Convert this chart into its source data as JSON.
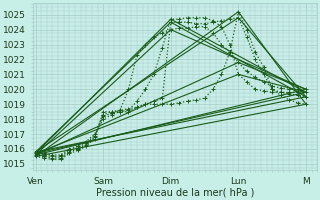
{
  "background_color": "#c8eee8",
  "grid_color": "#a8ccc8",
  "line_color": "#1a5c1a",
  "text_color": "#1a3a1a",
  "ylabel_ticks": [
    1015,
    1016,
    1017,
    1018,
    1019,
    1020,
    1021,
    1022,
    1023,
    1024,
    1025
  ],
  "ylim": [
    1014.6,
    1025.8
  ],
  "xlim": [
    -1,
    100
  ],
  "xlabel": "Pression niveau de la mer( hPa )",
  "day_labels": [
    "Ven",
    "Sam",
    "Dim",
    "Lun",
    "M"
  ],
  "day_positions": [
    0,
    24,
    48,
    72,
    96
  ],
  "dotted_series": [
    {
      "x": [
        0,
        3,
        6,
        9,
        12,
        15,
        18,
        21,
        24,
        27,
        30,
        33,
        36,
        39,
        42,
        45,
        48,
        51,
        54,
        57,
        60,
        63,
        66,
        69,
        72,
        75,
        78,
        81,
        84,
        87,
        90,
        93,
        96
      ],
      "y": [
        1015.8,
        1015.7,
        1015.6,
        1015.6,
        1016.0,
        1016.2,
        1016.5,
        1017.0,
        1018.3,
        1018.5,
        1018.6,
        1018.7,
        1018.8,
        1019.0,
        1019.2,
        1019.4,
        1024.5,
        1024.5,
        1024.5,
        1024.4,
        1024.4,
        1024.5,
        1024.6,
        1024.7,
        1024.8,
        1023.5,
        1022.0,
        1021.0,
        1020.0,
        1019.8,
        1019.7,
        1019.6,
        1019.5
      ]
    },
    {
      "x": [
        0,
        3,
        6,
        9,
        12,
        15,
        18,
        21,
        24,
        27,
        30,
        33,
        36,
        39,
        42,
        45,
        48,
        51,
        54,
        57,
        60,
        63,
        66,
        69,
        72,
        75,
        78,
        81,
        84,
        87,
        90,
        93,
        96
      ],
      "y": [
        1015.7,
        1015.6,
        1015.5,
        1015.5,
        1015.9,
        1016.1,
        1016.4,
        1016.9,
        1018.0,
        1018.3,
        1018.5,
        1018.6,
        1019.2,
        1020.0,
        1021.0,
        1022.8,
        1024.7,
        1024.7,
        1024.8,
        1024.8,
        1024.8,
        1024.6,
        1024.2,
        1023.0,
        1021.0,
        1020.5,
        1020.0,
        1019.9,
        1019.8,
        1019.8,
        1019.8,
        1019.8,
        1019.8
      ]
    },
    {
      "x": [
        0,
        3,
        6,
        9,
        12,
        15,
        18,
        21,
        24,
        27,
        30,
        33,
        36,
        39,
        42,
        45,
        48,
        51,
        54,
        57,
        60,
        63,
        66,
        69,
        72,
        75,
        78,
        81,
        84,
        87,
        90,
        93,
        96
      ],
      "y": [
        1015.6,
        1015.5,
        1015.4,
        1015.4,
        1015.8,
        1016.0,
        1016.3,
        1016.8,
        1018.2,
        1018.4,
        1018.6,
        1020.0,
        1022.3,
        1023.0,
        1023.5,
        1023.8,
        1024.0,
        1024.1,
        1024.1,
        1024.2,
        1024.2,
        1023.8,
        1023.0,
        1022.5,
        1021.8,
        1021.2,
        1020.8,
        1020.5,
        1020.2,
        1020.1,
        1020.0,
        1020.0,
        1020.0
      ]
    },
    {
      "x": [
        0,
        3,
        6,
        9,
        12,
        15,
        18,
        21,
        24,
        27,
        30,
        33,
        36,
        39,
        42,
        45,
        48,
        51,
        54,
        57,
        60,
        63,
        66,
        69,
        72,
        75,
        78,
        81,
        84,
        87,
        90,
        93,
        96
      ],
      "y": [
        1015.5,
        1015.4,
        1015.3,
        1015.3,
        1015.7,
        1015.9,
        1016.2,
        1016.7,
        1018.5,
        1018.5,
        1018.5,
        1018.5,
        1018.8,
        1019.0,
        1019.0,
        1019.0,
        1019.0,
        1019.1,
        1019.2,
        1019.3,
        1019.4,
        1020.0,
        1021.0,
        1022.5,
        1025.2,
        1024.0,
        1022.5,
        1021.5,
        1020.0,
        1019.6,
        1019.3,
        1019.1,
        1019.0
      ]
    }
  ],
  "solid_series": [
    {
      "x": [
        0,
        96
      ],
      "y": [
        1015.8,
        1019.5
      ]
    },
    {
      "x": [
        0,
        96
      ],
      "y": [
        1015.7,
        1019.8
      ]
    },
    {
      "x": [
        0,
        96
      ],
      "y": [
        1015.6,
        1020.0
      ]
    },
    {
      "x": [
        0,
        96
      ],
      "y": [
        1015.5,
        1019.0
      ]
    },
    {
      "x": [
        0,
        72,
        96
      ],
      "y": [
        1015.8,
        1024.8,
        1019.5
      ]
    },
    {
      "x": [
        0,
        72,
        96
      ],
      "y": [
        1015.7,
        1021.0,
        1019.8
      ]
    },
    {
      "x": [
        0,
        72,
        96
      ],
      "y": [
        1015.6,
        1021.8,
        1020.0
      ]
    },
    {
      "x": [
        0,
        48,
        96
      ],
      "y": [
        1015.8,
        1024.5,
        1019.5
      ]
    },
    {
      "x": [
        0,
        48,
        96
      ],
      "y": [
        1015.7,
        1024.7,
        1019.8
      ]
    },
    {
      "x": [
        0,
        48,
        96
      ],
      "y": [
        1015.6,
        1024.0,
        1020.0
      ]
    },
    {
      "x": [
        0,
        72,
        96
      ],
      "y": [
        1015.5,
        1025.2,
        1019.0
      ]
    }
  ]
}
